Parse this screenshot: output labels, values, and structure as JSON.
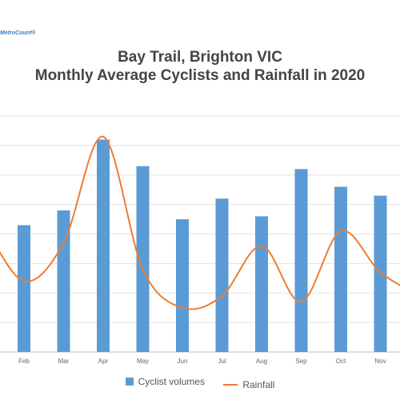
{
  "logo": "MetroCount®",
  "title_line1": "Bay Trail, Brighton VIC",
  "title_line2": "Monthly Average Cyclists and Rainfall in 2020",
  "colors": {
    "bar": "#5b9bd5",
    "line": "#ed7d31",
    "grid": "#e3e3e3",
    "axis": "#bfbfbf"
  },
  "chart_data": {
    "type": "bar",
    "categories": [
      "Feb",
      "Mar",
      "Apr",
      "May",
      "Jun",
      "Jul",
      "Aug",
      "Sep",
      "Oct",
      "Nov"
    ],
    "grid": true,
    "legend_position": "bottom",
    "series": [
      {
        "name": "Cyclist volumes",
        "type": "bar",
        "values": [
          4.3,
          4.8,
          7.2,
          6.3,
          4.5,
          5.2,
          4.6,
          6.2,
          5.6,
          5.3
        ]
      },
      {
        "name": "Rainfall",
        "type": "line",
        "values": [
          2.4,
          3.7,
          7.3,
          2.8,
          1.5,
          1.9,
          3.6,
          1.7,
          4.1,
          2.7
        ]
      }
    ],
    "ylim": [
      0,
      8
    ]
  }
}
